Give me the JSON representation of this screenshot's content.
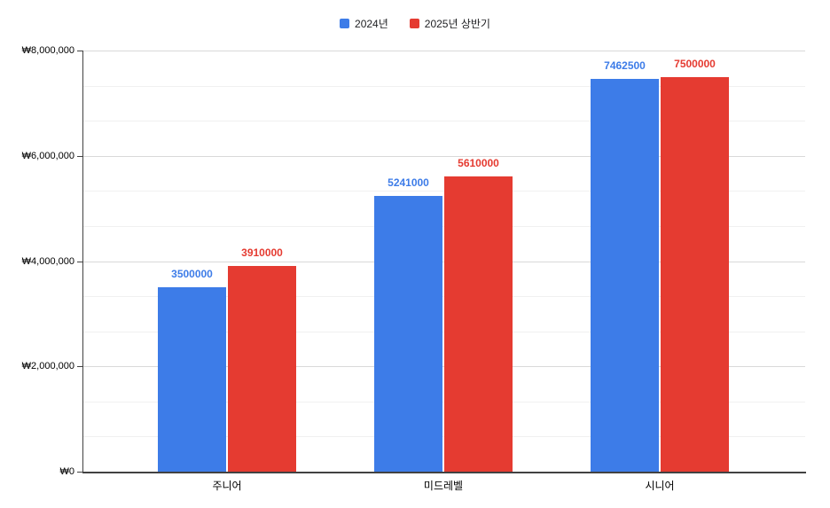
{
  "chart_data": {
    "type": "bar",
    "title": "",
    "xlabel": "",
    "ylabel": "",
    "categories": [
      "주니어",
      "미드레벨",
      "시니어"
    ],
    "series": [
      {
        "name": "2024년",
        "color": "#3D7CE8",
        "values": [
          3500000,
          5241000,
          7462500
        ]
      },
      {
        "name": "2025년 상반기",
        "color": "#E53B31",
        "values": [
          3910000,
          5610000,
          7500000
        ]
      }
    ],
    "data_labels_shown": true,
    "y_axis": {
      "min": 0,
      "max": 8000000,
      "major_step": 2000000,
      "minor_divisions_per_major": 3,
      "tick_labels": [
        "₩0",
        "₩2,000,000",
        "₩4,000,000",
        "₩6,000,000",
        "₩8,000,000"
      ]
    },
    "legend_position": "top",
    "grid": true
  },
  "colors": {
    "background": "#ffffff",
    "axis": "#424242",
    "major_gridline": "#d9d9d9",
    "minor_gridline": "#f0f0f0",
    "axis_label_text": "#000000",
    "legend_text": "#202124"
  }
}
